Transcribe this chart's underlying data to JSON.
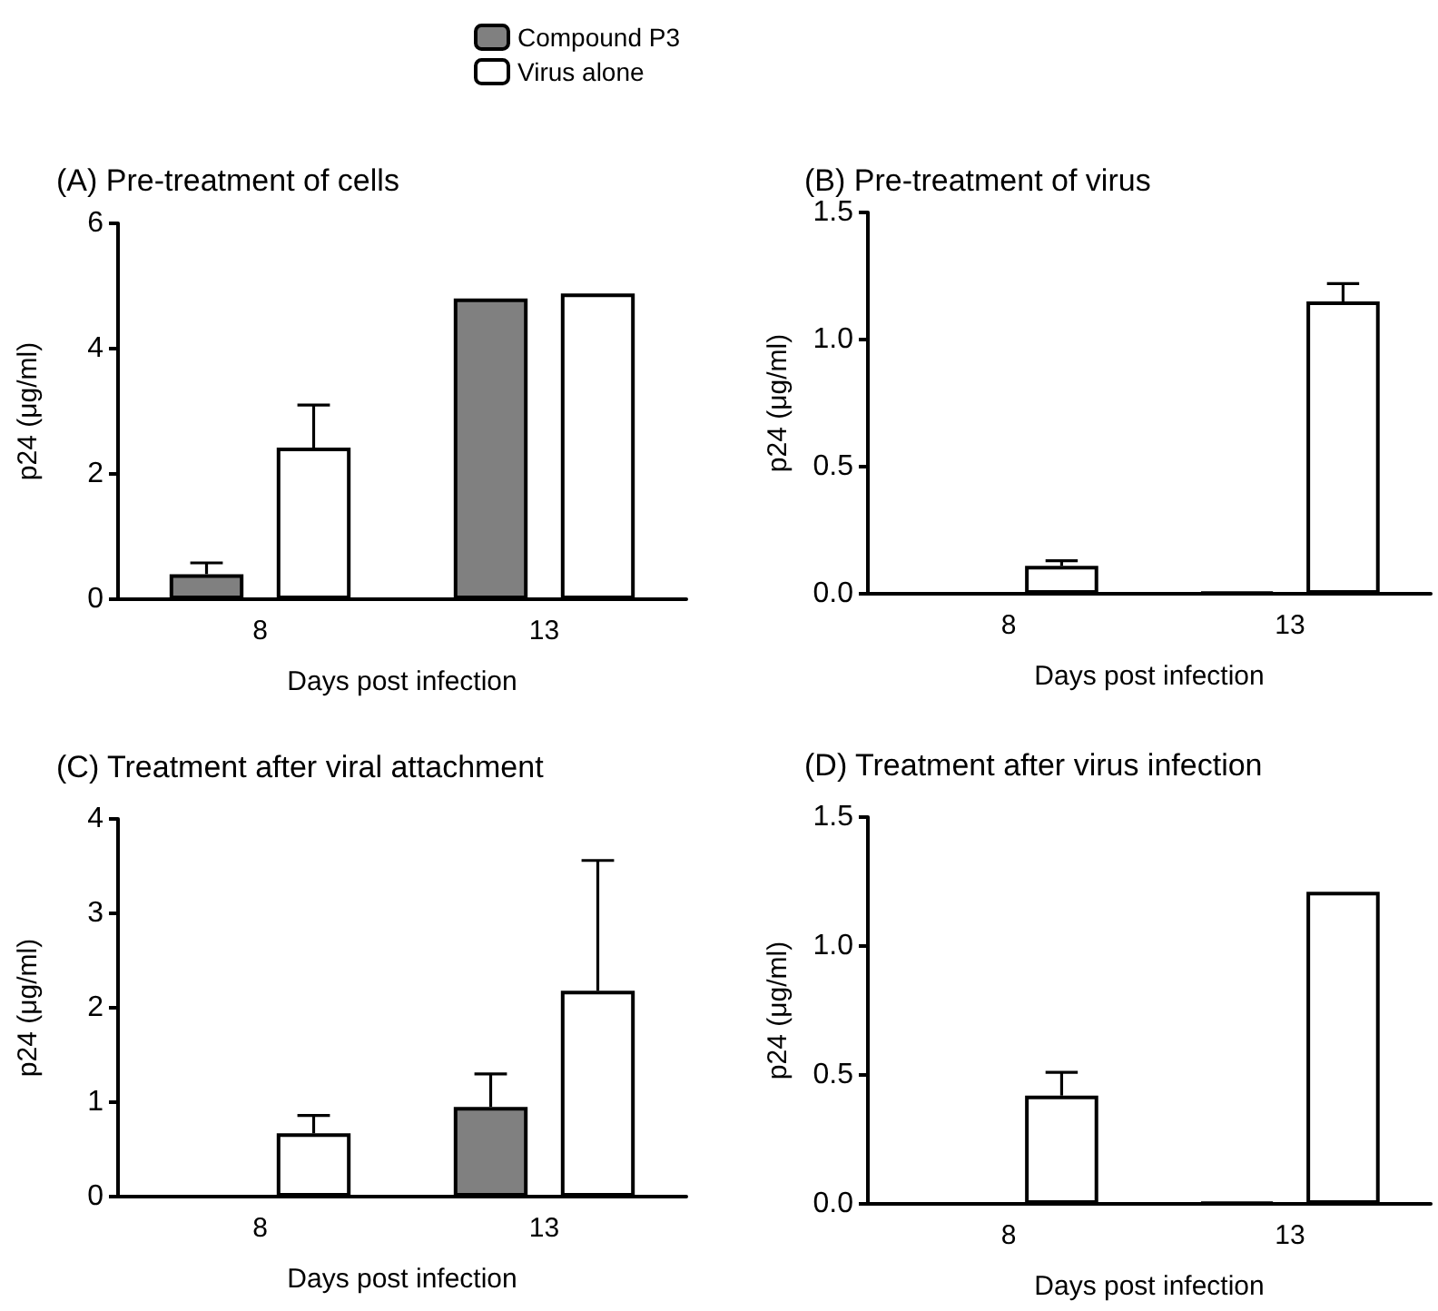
{
  "chart_data": [
    {
      "type": "bar",
      "title": "(A) Pre-treatment of cells",
      "xlabel": "Days post infection",
      "ylabel": "p24 (μg/ml)",
      "categories": [
        "8",
        "13"
      ],
      "ylim": [
        0,
        6
      ],
      "yticks": [
        0,
        2,
        4,
        6
      ],
      "legend": "top",
      "series": [
        {
          "name": "Compound P3",
          "color": "#808080",
          "values": [
            0.4,
            4.8
          ],
          "errors": [
            [
              0.4,
              0.58
            ],
            null
          ]
        },
        {
          "name": "Virus alone",
          "color": "#ffffff",
          "values": [
            2.42,
            4.88
          ],
          "errors": [
            [
              2.42,
              3.1
            ],
            null
          ]
        }
      ]
    },
    {
      "type": "bar",
      "title": "(B) Pre-treatment of virus",
      "xlabel": "Days post infection",
      "ylabel": "p24 (μg/ml)",
      "categories": [
        "8",
        "13"
      ],
      "ylim": [
        0,
        1.5
      ],
      "yticks": [
        {
          "value": 0,
          "label": "0.0"
        },
        {
          "value": 0.5,
          "label": "0.5"
        },
        {
          "value": 1,
          "label": "1.0"
        },
        {
          "value": 1.5,
          "label": "1.5"
        }
      ],
      "series": [
        {
          "color": "#808080",
          "values": [
            0,
            0.005
          ],
          "errors": [
            null,
            null
          ]
        },
        {
          "color": "#ffffff",
          "values": [
            0.11,
            1.15
          ],
          "errors": [
            [
              0.11,
              0.13
            ],
            [
              1.15,
              1.22
            ]
          ]
        }
      ]
    },
    {
      "type": "bar",
      "title": "(C) Treatment after viral attachment",
      "xlabel": "Days post infection",
      "ylabel": "p24 (μg/ml)",
      "categories": [
        "8",
        "13"
      ],
      "ylim": [
        0,
        4
      ],
      "yticks": [
        0,
        1,
        2,
        3,
        4
      ],
      "series": [
        {
          "color": "#808080",
          "values": [
            0,
            0.95
          ],
          "errors": [
            null,
            [
              0.95,
              1.3
            ]
          ]
        },
        {
          "color": "#ffffff",
          "values": [
            0.67,
            2.18
          ],
          "errors": [
            [
              0.67,
              0.86
            ],
            [
              2.18,
              3.56
            ]
          ]
        }
      ]
    },
    {
      "type": "bar",
      "title": "(D) Treatment after virus infection",
      "xlabel": "Days post infection",
      "ylabel": "p24 (μg/ml)",
      "categories": [
        "8",
        "13"
      ],
      "ylim": [
        0,
        1.5
      ],
      "yticks": [
        {
          "value": 0,
          "label": "0.0"
        },
        {
          "value": 0.5,
          "label": "0.5"
        },
        {
          "value": 1,
          "label": "1.0"
        },
        {
          "value": 1.5,
          "label": "1.5"
        }
      ],
      "series": [
        {
          "color": "#808080",
          "values": [
            0,
            0.005
          ],
          "errors": [
            null,
            null
          ]
        },
        {
          "color": "#ffffff",
          "values": [
            0.42,
            1.21
          ],
          "errors": [
            [
              0.42,
              0.51
            ],
            null
          ]
        }
      ]
    }
  ]
}
